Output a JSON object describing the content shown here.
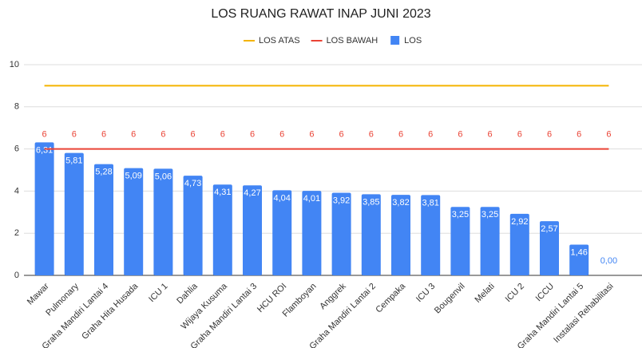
{
  "chart_data": {
    "type": "bar",
    "title": "LOS RUANG RAWAT INAP JUNI 2023",
    "categories": [
      "Mawar",
      "Pulmonary",
      "Graha Mandiri Lantai 4",
      "Graha Hita Husada",
      "ICU 1",
      "Dahlia",
      "Wijaya Kusuma",
      "Graha Mandiri Lantai 3",
      "HCU ROI",
      "Flamboyan",
      "Anggrek",
      "Graha Mandiri Lantai 2",
      "Cempaka",
      "ICU 3",
      "Bougenvil",
      "Melati",
      "ICU 2",
      "ICCU",
      "Graha Mandiri Lantai 5",
      "Instalasi Rehabilitasi"
    ],
    "series": [
      {
        "name": "LOS ATAS",
        "type": "line",
        "color": "#f4b400",
        "values": [
          9,
          9,
          9,
          9,
          9,
          9,
          9,
          9,
          9,
          9,
          9,
          9,
          9,
          9,
          9,
          9,
          9,
          9,
          9,
          9
        ]
      },
      {
        "name": "LOS BAWAH",
        "type": "line",
        "color": "#ea4335",
        "values": [
          6,
          6,
          6,
          6,
          6,
          6,
          6,
          6,
          6,
          6,
          6,
          6,
          6,
          6,
          6,
          6,
          6,
          6,
          6,
          6
        ],
        "data_labels": true
      },
      {
        "name": "LOS",
        "type": "bar",
        "color": "#4285f4",
        "values": [
          6.31,
          5.81,
          5.28,
          5.09,
          5.06,
          4.73,
          4.31,
          4.27,
          4.04,
          4.01,
          3.92,
          3.85,
          3.82,
          3.81,
          3.25,
          3.25,
          2.92,
          2.57,
          1.46,
          0.0
        ],
        "value_labels": [
          "6,31",
          "5,81",
          "5,28",
          "5,09",
          "5,06",
          "4,73",
          "4,31",
          "4,27",
          "4,04",
          "4,01",
          "3,92",
          "3,85",
          "3,82",
          "3,81",
          "3,25",
          "3,25",
          "2,92",
          "2,57",
          "1,46",
          "0,00"
        ]
      }
    ],
    "ylim": [
      0,
      10
    ],
    "yticks": [
      0,
      2,
      4,
      6,
      8,
      10
    ],
    "grid": true,
    "legend": "top"
  }
}
